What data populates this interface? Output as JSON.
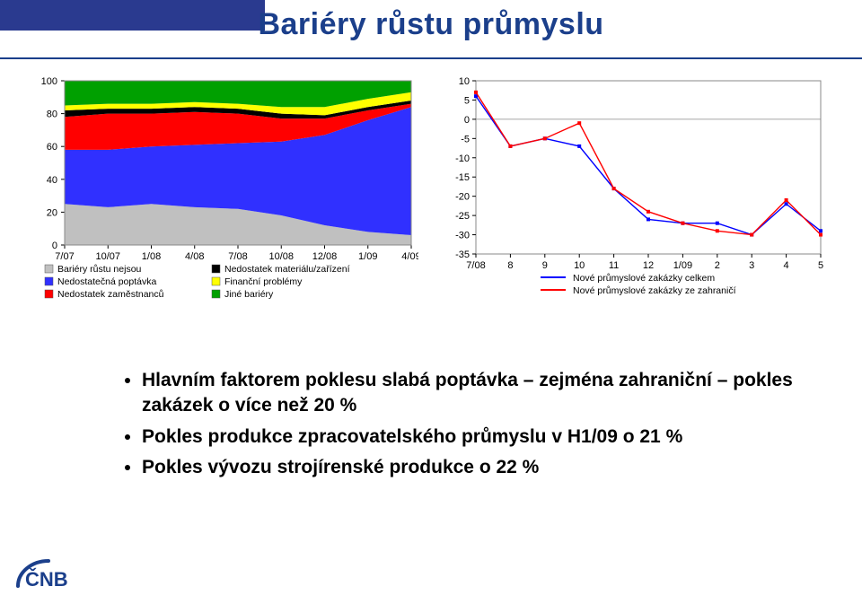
{
  "page": {
    "title": "Bariéry růstu průmyslu",
    "title_color": "#1b3f8b",
    "topbar_color": "#2a3a8f",
    "underline_color": "#1b3f8b",
    "title_fontsize": 34
  },
  "area_chart": {
    "type": "area-stacked",
    "x_labels": [
      "7/07",
      "10/07",
      "1/08",
      "4/08",
      "7/08",
      "10/08",
      "12/08",
      "1/09",
      "4/09"
    ],
    "ylim": [
      0,
      100
    ],
    "ytick_step": 20,
    "yticks": [
      0,
      20,
      40,
      60,
      80,
      100
    ],
    "axis_fontsize": 11,
    "legend_fontsize": 10.5,
    "background_color": "#ffffff",
    "border_color": "#888888",
    "series": [
      {
        "name": "Bariéry růstu nejsou",
        "color": "#c0c0c0",
        "values": [
          25,
          23,
          25,
          23,
          22,
          18,
          12,
          8,
          6
        ]
      },
      {
        "name": "Nedostatečná poptávka",
        "color": "#3030ff",
        "values": [
          33,
          35,
          35,
          38,
          40,
          45,
          55,
          68,
          78
        ]
      },
      {
        "name": "Nedostatek zaměstnanců",
        "color": "#ff0000",
        "values": [
          20,
          22,
          20,
          20,
          18,
          14,
          10,
          6,
          2
        ]
      },
      {
        "name": "Nedostatek materiálu/zařízení",
        "color": "#000000",
        "values": [
          4,
          3,
          3,
          3,
          3,
          3,
          2,
          2,
          2
        ]
      },
      {
        "name": "Finanční problémy",
        "color": "#ffff00",
        "values": [
          3,
          3,
          3,
          3,
          3,
          4,
          5,
          5,
          5
        ]
      },
      {
        "name": "Jiné bariéry",
        "color": "#00a000",
        "values": [
          15,
          14,
          14,
          13,
          14,
          16,
          16,
          11,
          7
        ]
      }
    ]
  },
  "line_chart": {
    "type": "line",
    "x_labels": [
      "7/08",
      "8",
      "9",
      "10",
      "11",
      "12",
      "1/09",
      "2",
      "3",
      "4",
      "5"
    ],
    "ylim": [
      -35,
      10
    ],
    "ytick_step": 5,
    "yticks": [
      10,
      5,
      0,
      -5,
      -10,
      -15,
      -20,
      -25,
      -30,
      -35
    ],
    "axis_fontsize": 11,
    "legend_fontsize": 10.5,
    "background_color": "#ffffff",
    "border_color": "#888888",
    "marker": "square",
    "marker_size": 4,
    "line_width": 1.4,
    "series": [
      {
        "name": "Nové průmyslové zakázky celkem",
        "color": "#0000ff",
        "values": [
          6,
          -7,
          -5,
          -7,
          -18,
          -26,
          -27,
          -27,
          -30,
          -22,
          -29
        ]
      },
      {
        "name": "Nové průmyslové zakázky ze zahraničí",
        "color": "#ff0000",
        "values": [
          7,
          -7,
          -5,
          -1,
          -18,
          -24,
          -27,
          -29,
          -30,
          -21,
          -30
        ]
      }
    ]
  },
  "bullets": [
    "Hlavním faktorem poklesu slabá poptávka – zejména zahraniční – pokles zakázek o více než 20 %",
    "Pokles produkce zpracovatelského průmyslu v H1/09 o 21 %",
    "Pokles vývozu strojírenské produkce o 22 %"
  ],
  "logo": {
    "text": "ČNB",
    "arc_color": "#1b3f8b",
    "text_color": "#1b3f8b"
  }
}
